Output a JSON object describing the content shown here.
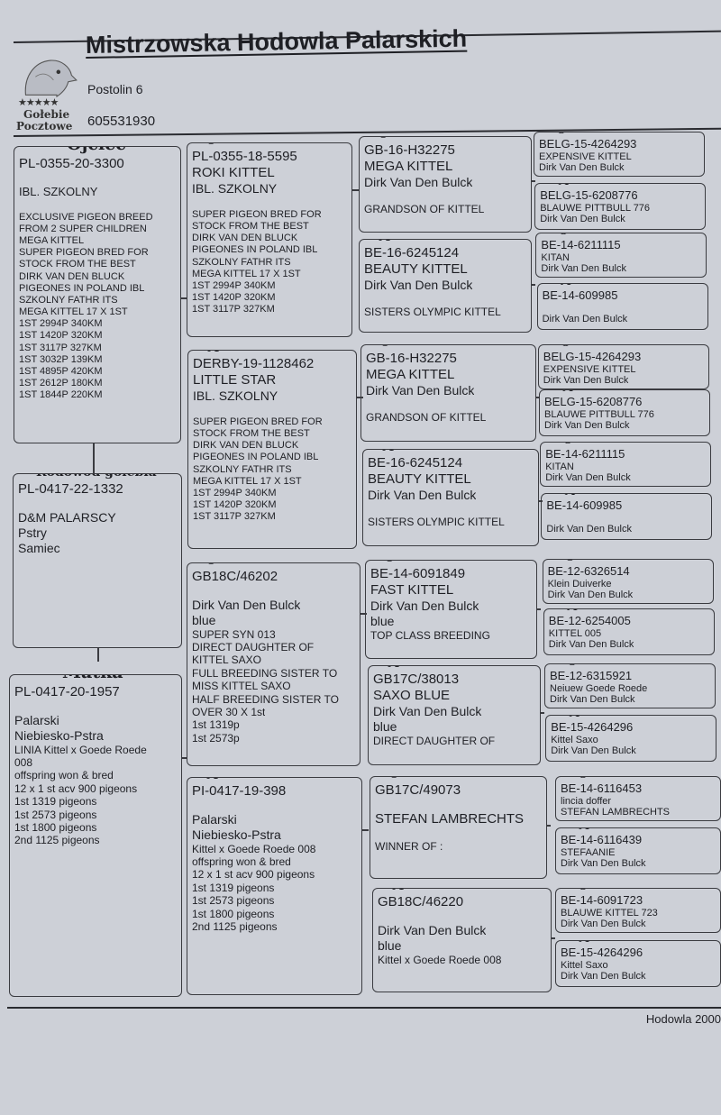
{
  "header": {
    "title": "Mistrzowska Hodowla Palarskich",
    "address": "Postolin  6",
    "phone": "605531930",
    "logo": {
      "icon": "pigeon-head-icon",
      "stars": "★★★★★",
      "line1": "Gołebie",
      "line2": "Pocztowe"
    }
  },
  "footer": {
    "text": "Hodowla 2000"
  },
  "pedigree": [
    {
      "label": "Ojciec",
      "lines": [
        "PL-0355-20-3300",
        "IBL. SZKOLNY",
        "EXCLUSIVE PIGEON BREED",
        "FROM 2 SUPER CHILDREN",
        "MEGA KITTEL",
        "SUPER PIGEON BRED FOR",
        "STOCK FROM THE BEST",
        "DIRK VAN DEN BLUCK",
        "PIGEONES IN POLAND IBL",
        "SZKOLNY FATHR ITS",
        "MEGA KITTEL 17 X 1ST",
        "1ST 2994P 340KM",
        "1ST 1420P 320KM",
        "1ST 3117P 327KM",
        "1ST 3032P 139KM",
        "1ST 4895P 420KM",
        "1ST 2612P 180KM",
        "1ST 1844P 220KM"
      ]
    },
    {
      "label": "Rodowód gołebia",
      "lines": [
        "PL-0417-22-1332",
        "D&M PALARSCY",
        "Pstry",
        "Samiec"
      ]
    },
    {
      "label": "Matka",
      "lines": [
        "PL-0417-20-1957",
        "Palarski",
        "Niebiesko-Pstra",
        " LINIA Kittel x Goede Roede",
        "008",
        "offspring won & bred",
        "12 x 1 st acv 900 pigeons",
        "1st  1319 pigeons",
        "1st 2573 pigeons",
        "1st 1800 pigeons",
        "2nd 1125 pigeons"
      ]
    },
    {
      "label": "O",
      "lines": [
        "PL-0355-18-5595",
        "ROKI KITTEL",
        "IBL. SZKOLNY",
        "SUPER PIGEON BRED FOR",
        "STOCK FROM THE BEST",
        "DIRK VAN DEN BLUCK",
        "PIGEONES IN POLAND IBL",
        "SZKOLNY FATHR ITS",
        "MEGA KITTEL 17 X 1ST",
        "1ST 2994P 340KM",
        "1ST 1420P 320KM",
        "1ST 3117P 327KM"
      ]
    },
    {
      "label": "M",
      "lines": [
        "DERBY-19-1128462",
        "LITTLE STAR",
        "IBL. SZKOLNY",
        "SUPER PIGEON BRED FOR",
        "STOCK FROM THE BEST",
        "DIRK VAN DEN BLUCK",
        "PIGEONES IN POLAND IBL",
        "SZKOLNY FATHR ITS",
        "MEGA KITTEL 17 X 1ST",
        "1ST 2994P 340KM",
        "1ST 1420P 320KM",
        "1ST 3117P 327KM"
      ]
    },
    {
      "label": "O",
      "lines": [
        "GB18C/46202",
        "Dirk Van Den Bulck",
        "blue",
        "SUPER SYN 013",
        "DIRECT DAUGHTER OF",
        "KITTEL SAXO",
        "FULL BREEDING SISTER TO",
        "MISS KITTEL SAXO",
        "HALF BREEDING SISTER TO",
        "OVER 30 X 1st",
        "1st 1319p",
        "1st 2573p"
      ]
    },
    {
      "label": "M",
      "lines": [
        "PI-0417-19-398",
        "Palarski",
        "Niebiesko-Pstra",
        " Kittel x Goede Roede 008",
        "offspring won & bred",
        "12 x 1 st acv 900 pigeons",
        "1st  1319 pigeons",
        "1st 2573 pigeons",
        "1st 1800 pigeons",
        "2nd 1125 pigeons"
      ]
    },
    {
      "label": "O",
      "lines": [
        "GB-16-H32275",
        "MEGA KITTEL",
        "Dirk Van Den Bulck",
        "GRANDSON OF KITTEL"
      ]
    },
    {
      "label": "M",
      "lines": [
        "BE-16-6245124",
        "BEAUTY KITTEL",
        "Dirk Van Den Bulck",
        "SISTERS OLYMPIC KITTEL"
      ]
    },
    {
      "label": "O",
      "lines": [
        "GB-16-H32275",
        "MEGA KITTEL",
        "Dirk Van Den Bulck",
        "GRANDSON OF KITTEL"
      ]
    },
    {
      "label": "M",
      "lines": [
        "BE-16-6245124",
        "BEAUTY KITTEL",
        "Dirk Van Den Bulck",
        "SISTERS OLYMPIC KITTEL"
      ]
    },
    {
      "label": "O",
      "lines": [
        "BE-14-6091849",
        "FAST KITTEL",
        "Dirk Van Den Bulck",
        "blue",
        "TOP CLASS BREEDING"
      ]
    },
    {
      "label": "M",
      "lines": [
        "GB17C/38013",
        "SAXO BLUE",
        "Dirk Van Den Bulck",
        "blue",
        "DIRECT DAUGHTER OF"
      ]
    },
    {
      "label": "O",
      "lines": [
        "GB17C/49073",
        "STEFAN LAMBRECHTS",
        "WINNER OF :"
      ]
    },
    {
      "label": "M",
      "lines": [
        "GB18C/46220",
        "Dirk Van Den Bulck",
        "blue",
        " Kittel x Goede Roede 008"
      ]
    },
    {
      "label": "O",
      "lines": [
        "BELG-15-4264293",
        "EXPENSIVE KITTEL",
        "Dirk Van Den Bulck"
      ]
    },
    {
      "label": "M",
      "lines": [
        "BELG-15-6208776",
        "BLAUWE PITTBULL 776",
        "Dirk Van Den Bulck"
      ]
    },
    {
      "label": "O",
      "lines": [
        "BE-14-6211115",
        "KITAN",
        "Dirk Van Den Bulck"
      ]
    },
    {
      "label": "M",
      "lines": [
        "BE-14-609985",
        "",
        "Dirk Van Den Bulck"
      ]
    },
    {
      "label": "O",
      "lines": [
        "BELG-15-4264293",
        "EXPENSIVE KITTEL",
        "Dirk Van Den Bulck"
      ]
    },
    {
      "label": "M",
      "lines": [
        "BELG-15-6208776",
        "BLAUWE PITTBULL 776",
        "Dirk Van Den Bulck"
      ]
    },
    {
      "label": "O",
      "lines": [
        "BE-14-6211115",
        "KITAN",
        "Dirk Van Den Bulck"
      ]
    },
    {
      "label": "M",
      "lines": [
        "BE-14-609985",
        "",
        "Dirk Van Den Bulck"
      ]
    },
    {
      "label": "O",
      "lines": [
        "BE-12-6326514",
        "Klein Duiverke",
        "Dirk Van Den Bulck"
      ]
    },
    {
      "label": "M",
      "lines": [
        "BE-12-6254005",
        "KITTEL 005",
        "Dirk Van Den Bulck"
      ]
    },
    {
      "label": "O",
      "lines": [
        "BE-12-6315921",
        "Neiuew Goede Roede",
        "Dirk Van Den Bulck"
      ]
    },
    {
      "label": "M",
      "lines": [
        "BE-15-4264296",
        "Kittel Saxo",
        "Dirk Van Den Bulck"
      ]
    },
    {
      "label": "O",
      "lines": [
        "BE-14-6116453",
        "lincia doffer",
        "STEFAN LAMBRECHTS"
      ]
    },
    {
      "label": "M",
      "lines": [
        "BE-14-6116439",
        "STEFAANIE",
        "Dirk Van Den Bulck"
      ]
    },
    {
      "label": "O",
      "lines": [
        "BE-14-6091723",
        "BLAUWE KITTEL 723",
        "Dirk Van Den Bulck"
      ]
    },
    {
      "label": "M",
      "lines": [
        "BE-15-4264296",
        "Kittel Saxo",
        "Dirk Van Den Bulck"
      ]
    }
  ]
}
